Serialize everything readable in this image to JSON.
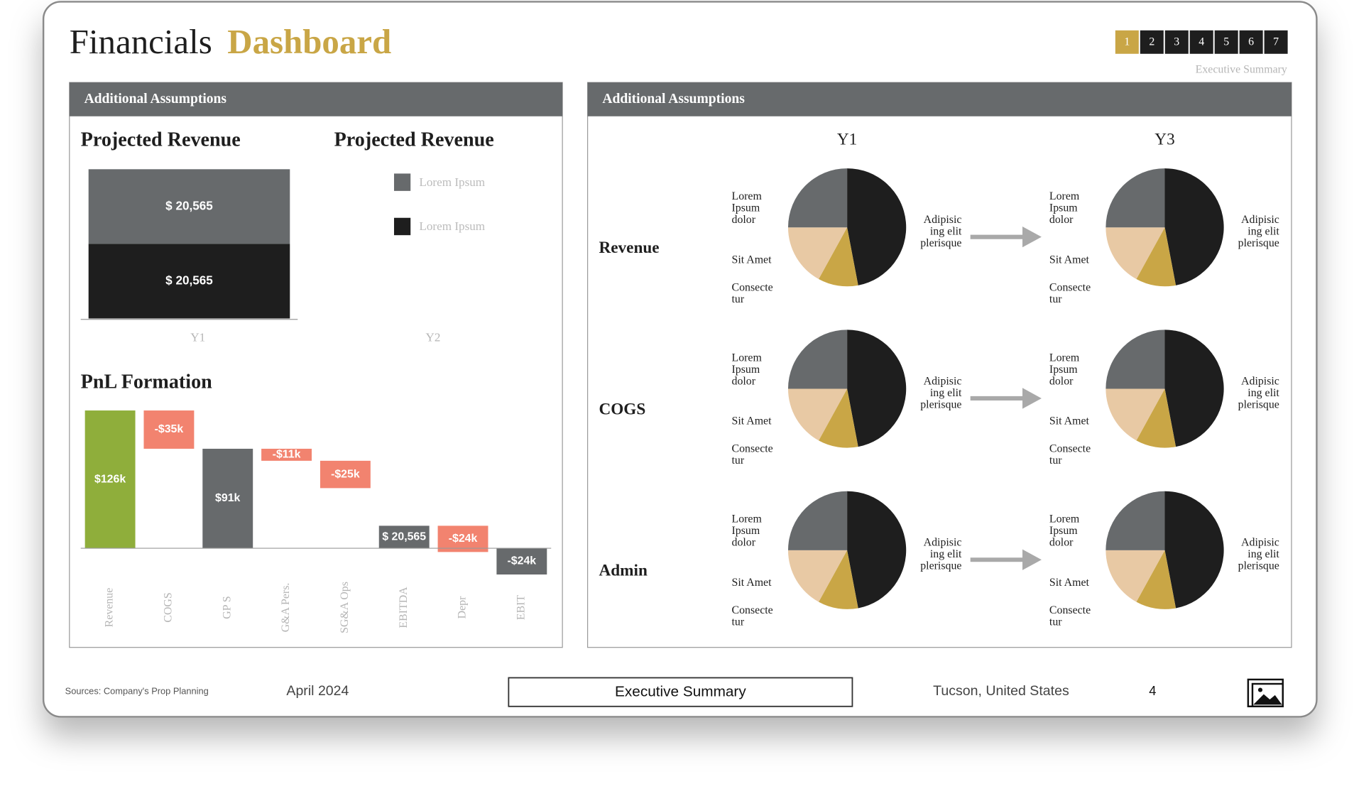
{
  "header": {
    "title": "Financials",
    "title_accent": "Dashboard",
    "pages": [
      "1",
      "2",
      "3",
      "4",
      "5",
      "6",
      "7"
    ],
    "section": "Executive Summary"
  },
  "left_panel": {
    "header": "Additional Assumptions",
    "revenue_chart": {
      "type": "bar",
      "stacked": true,
      "title": "Projected Revenue",
      "legend_title": "Projected Revenue",
      "categories": [
        "Y1",
        "Y2"
      ],
      "series": [
        {
          "name": "Lorem Ipsum",
          "color": "#1e1e1e",
          "values": [
            20565,
            null
          ],
          "value_labels": [
            "$ 20,565",
            null
          ]
        },
        {
          "name": "Lorem Ipsum",
          "color": "#676a6c",
          "values": [
            20565,
            null
          ],
          "value_labels": [
            "$ 20,565",
            null
          ]
        }
      ]
    },
    "pnl_chart": {
      "type": "waterfall",
      "title": "PnL Formation",
      "categories": [
        "Revenue",
        "COGS",
        "GP S",
        "G&A Pers.",
        "SG&A Ops",
        "EBITDA",
        "Depr",
        "EBIT"
      ],
      "values": [
        126000,
        -35000,
        91000,
        -11000,
        -25000,
        20565,
        -24000,
        -24000
      ],
      "value_labels": [
        "$126k",
        "-$35k",
        "$91k",
        "-$11k",
        "-$25k",
        "$ 20,565",
        "-$24k",
        "-$24k"
      ],
      "colors": [
        "#8fae3b",
        "#f2836f",
        "#676a6c",
        "#f2836f",
        "#f2836f",
        "#676a6c",
        "#f2836f",
        "#676a6c"
      ]
    }
  },
  "right_panel": {
    "header": "Additional Assumptions",
    "pie_grid": {
      "type": "pie",
      "columns": [
        "Y1",
        "Y3"
      ],
      "rows": [
        "Revenue",
        "COGS",
        "Admin"
      ],
      "slice_labels": [
        [
          "Adipisic",
          "ing elit",
          "plerisque"
        ],
        [
          "Consecte",
          "tur"
        ],
        [
          "Sit Amet"
        ],
        [
          "Lorem",
          "Ipsum",
          "dolor"
        ]
      ],
      "colors": [
        "#1e1e1e",
        "#c9a646",
        "#e8c9a4",
        "#676a6c"
      ],
      "values": [
        [
          [
            47,
            11,
            17,
            25
          ],
          [
            47,
            11,
            17,
            25
          ]
        ],
        [
          [
            47,
            11,
            17,
            25
          ],
          [
            47,
            11,
            17,
            25
          ]
        ],
        [
          [
            47,
            11,
            17,
            25
          ],
          [
            47,
            11,
            17,
            25
          ]
        ]
      ]
    }
  },
  "footer": {
    "source": "Sources: Company's Prop Planning",
    "date": "April 2024",
    "section": "Executive Summary",
    "location": "Tucson, United States",
    "page": "4"
  }
}
